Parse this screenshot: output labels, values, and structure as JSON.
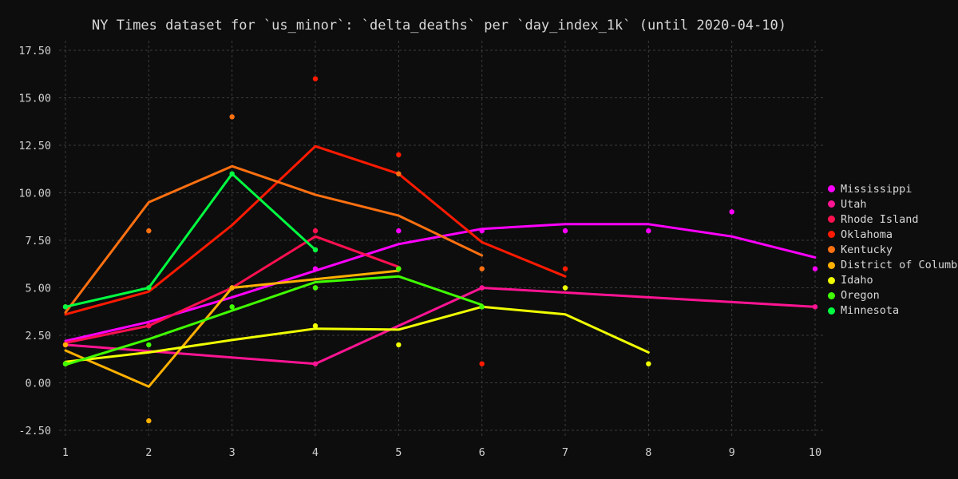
{
  "chart_data": {
    "type": "line",
    "title": "NY Times dataset for `us_minor`: `delta_deaths` per `day_index_1k` (until 2020-04-10)",
    "xlabel": "",
    "ylabel": "",
    "xlim": [
      1,
      10
    ],
    "ylim": [
      -2.5,
      17.5
    ],
    "x_ticks": [
      "1",
      "2",
      "3",
      "4",
      "5",
      "6",
      "7",
      "8",
      "9",
      "10"
    ],
    "y_ticks": [
      "-2.50",
      "0.00",
      "2.50",
      "5.00",
      "7.50",
      "10.00",
      "12.50",
      "15.00",
      "17.50"
    ],
    "grid": true,
    "legend": "right",
    "series": [
      {
        "name": "Mississippi",
        "color": "#ff00ff",
        "points": [
          [
            1,
            2
          ],
          [
            2,
            3
          ],
          [
            3,
            5
          ],
          [
            4,
            6
          ],
          [
            5,
            8
          ],
          [
            6,
            8
          ],
          [
            7,
            8
          ],
          [
            8,
            8
          ],
          [
            9,
            9
          ],
          [
            10,
            6
          ]
        ],
        "fit": [
          [
            1,
            2.2
          ],
          [
            2,
            3.2
          ],
          [
            3,
            4.5
          ],
          [
            4,
            5.9
          ],
          [
            5,
            7.3
          ],
          [
            6,
            8.1
          ],
          [
            7,
            8.35
          ],
          [
            8,
            8.35
          ],
          [
            9,
            7.7
          ],
          [
            10,
            6.6
          ]
        ]
      },
      {
        "name": "Utah",
        "color": "#ff1493",
        "points": [
          [
            1,
            2
          ],
          [
            4,
            1
          ],
          [
            6,
            5
          ],
          [
            10,
            4
          ]
        ],
        "fit": [
          [
            1,
            2
          ],
          [
            4,
            1
          ],
          [
            6,
            5
          ],
          [
            10,
            4
          ]
        ]
      },
      {
        "name": "Rhode Island",
        "color": "#ff1050",
        "points": [
          [
            1,
            2
          ],
          [
            2,
            3
          ],
          [
            3,
            5
          ],
          [
            4,
            8
          ],
          [
            5,
            6
          ]
        ],
        "fit": [
          [
            1,
            2.1
          ],
          [
            2,
            3
          ],
          [
            3,
            5
          ],
          [
            4,
            7.7
          ],
          [
            5,
            6.1
          ]
        ]
      },
      {
        "name": "Oklahoma",
        "color": "#ff1a00",
        "points": [
          [
            1,
            4
          ],
          [
            2,
            5
          ],
          [
            4,
            16
          ],
          [
            5,
            12
          ],
          [
            6,
            1
          ],
          [
            7,
            6
          ]
        ],
        "fit": [
          [
            1,
            3.6
          ],
          [
            2,
            4.8
          ],
          [
            3,
            8.3
          ],
          [
            4,
            12.45
          ],
          [
            5,
            11
          ],
          [
            6,
            7.4
          ],
          [
            7,
            5.6
          ]
        ]
      },
      {
        "name": "Kentucky",
        "color": "#ff7010",
        "points": [
          [
            1,
            4
          ],
          [
            2,
            8
          ],
          [
            3,
            14
          ],
          [
            4,
            7
          ],
          [
            5,
            11
          ],
          [
            6,
            6
          ]
        ],
        "fit": [
          [
            1,
            3.7
          ],
          [
            2,
            9.5
          ],
          [
            3,
            11.4
          ],
          [
            4,
            9.9
          ],
          [
            5,
            8.8
          ],
          [
            6,
            6.7
          ]
        ]
      },
      {
        "name": "District of Columbia",
        "color": "#ffb000",
        "points": [
          [
            1,
            2
          ],
          [
            2,
            -2
          ],
          [
            3,
            5
          ],
          [
            4,
            5
          ],
          [
            5,
            6
          ]
        ],
        "fit": [
          [
            1,
            1.7
          ],
          [
            2,
            -0.2
          ],
          [
            3,
            5
          ],
          [
            4,
            5.45
          ],
          [
            5,
            5.9
          ]
        ]
      },
      {
        "name": "Idaho",
        "color": "#f0ff00",
        "points": [
          [
            1,
            1
          ],
          [
            4,
            3
          ],
          [
            5,
            2
          ],
          [
            6,
            4
          ],
          [
            7,
            5
          ],
          [
            8,
            1
          ]
        ],
        "fit": [
          [
            1,
            1.1
          ],
          [
            2,
            1.6
          ],
          [
            3,
            2.25
          ],
          [
            4,
            2.85
          ],
          [
            5,
            2.8
          ],
          [
            6,
            4
          ],
          [
            7,
            3.6
          ],
          [
            8,
            1.6
          ]
        ]
      },
      {
        "name": "Oregon",
        "color": "#40ff00",
        "points": [
          [
            1,
            1
          ],
          [
            2,
            2
          ],
          [
            3,
            4
          ],
          [
            4,
            5
          ],
          [
            5,
            6
          ],
          [
            6,
            4
          ]
        ],
        "fit": [
          [
            1,
            0.95
          ],
          [
            2,
            2.3
          ],
          [
            3,
            3.8
          ],
          [
            4,
            5.3
          ],
          [
            5,
            5.6
          ],
          [
            6,
            4.1
          ]
        ]
      },
      {
        "name": "Minnesota",
        "color": "#00ff40",
        "points": [
          [
            1,
            4
          ],
          [
            2,
            5
          ],
          [
            3,
            11
          ],
          [
            4,
            7
          ]
        ],
        "fit": [
          [
            1,
            4
          ],
          [
            2,
            5
          ],
          [
            3,
            11
          ],
          [
            4,
            7
          ]
        ]
      }
    ]
  }
}
